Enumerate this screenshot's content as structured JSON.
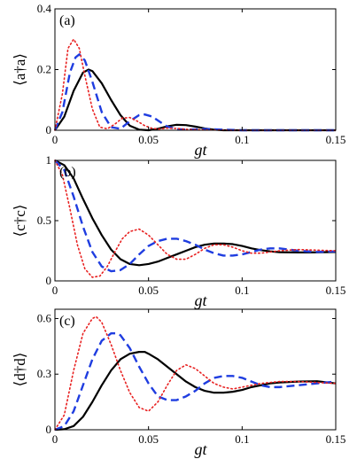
{
  "chart_data": [
    {
      "type": "line",
      "panel_label": "(a)",
      "ylabel": "⟨a†a⟩",
      "xlabel": "gt",
      "xlim": [
        0,
        0.15
      ],
      "ylim": [
        0,
        0.4
      ],
      "xticks": [
        "0",
        "0.05",
        "0.1",
        "0.15"
      ],
      "yticks": [
        "0",
        "0.2",
        "0.4"
      ],
      "xtick_values": [
        0,
        0.05,
        0.1,
        0.15
      ],
      "ytick_values": [
        0,
        0.2,
        0.4
      ],
      "series": [
        {
          "style": "solid",
          "color": "#000000",
          "x": [
            0,
            0.005,
            0.01,
            0.015,
            0.018,
            0.02,
            0.025,
            0.03,
            0.035,
            0.04,
            0.045,
            0.05,
            0.055,
            0.06,
            0.065,
            0.07,
            0.075,
            0.08,
            0.085,
            0.09,
            0.1,
            0.12,
            0.15
          ],
          "y": [
            0,
            0.045,
            0.13,
            0.19,
            0.2,
            0.195,
            0.155,
            0.1,
            0.05,
            0.015,
            0.002,
            0.0,
            0.005,
            0.013,
            0.018,
            0.017,
            0.012,
            0.006,
            0.002,
            0.0,
            0.0,
            0.0,
            0.0
          ]
        },
        {
          "style": "dashed",
          "color": "#1f3de0",
          "x": [
            0,
            0.004,
            0.008,
            0.011,
            0.013,
            0.016,
            0.02,
            0.025,
            0.03,
            0.035,
            0.04,
            0.045,
            0.048,
            0.052,
            0.056,
            0.06,
            0.065,
            0.07,
            0.08,
            0.09,
            0.1,
            0.12,
            0.15
          ],
          "y": [
            0,
            0.06,
            0.19,
            0.24,
            0.25,
            0.23,
            0.16,
            0.06,
            0.01,
            0.005,
            0.03,
            0.05,
            0.052,
            0.045,
            0.028,
            0.012,
            0.004,
            0.002,
            0.004,
            0.002,
            0.0,
            0.0,
            0.0
          ]
        },
        {
          "style": "dotted",
          "color": "#e82020",
          "x": [
            0,
            0.004,
            0.007,
            0.01,
            0.013,
            0.016,
            0.02,
            0.024,
            0.028,
            0.032,
            0.036,
            0.04,
            0.044,
            0.048,
            0.052,
            0.056,
            0.06,
            0.065,
            0.07,
            0.08,
            0.1,
            0.15
          ],
          "y": [
            0,
            0.12,
            0.27,
            0.3,
            0.27,
            0.18,
            0.07,
            0.01,
            0.005,
            0.02,
            0.04,
            0.042,
            0.03,
            0.015,
            0.006,
            0.004,
            0.007,
            0.006,
            0.003,
            0.001,
            0.0,
            0.0
          ]
        }
      ]
    },
    {
      "type": "line",
      "panel_label": "(b)",
      "ylabel": "⟨c†c⟩",
      "xlabel": "gt",
      "xlim": [
        0,
        0.15
      ],
      "ylim": [
        0,
        1
      ],
      "xticks": [
        "0",
        "0.05",
        "0.1",
        "0.15"
      ],
      "yticks": [
        "0",
        "0.5",
        "1"
      ],
      "xtick_values": [
        0,
        0.05,
        0.1,
        0.15
      ],
      "ytick_values": [
        0,
        0.5,
        1
      ],
      "series": [
        {
          "style": "solid",
          "color": "#000000",
          "x": [
            0,
            0.005,
            0.01,
            0.015,
            0.02,
            0.025,
            0.03,
            0.035,
            0.04,
            0.045,
            0.05,
            0.055,
            0.06,
            0.065,
            0.07,
            0.075,
            0.08,
            0.085,
            0.09,
            0.095,
            0.1,
            0.105,
            0.11,
            0.115,
            0.12,
            0.13,
            0.14,
            0.15
          ],
          "y": [
            1,
            0.96,
            0.85,
            0.68,
            0.52,
            0.38,
            0.26,
            0.18,
            0.14,
            0.13,
            0.14,
            0.16,
            0.19,
            0.22,
            0.25,
            0.28,
            0.3,
            0.31,
            0.31,
            0.305,
            0.29,
            0.27,
            0.255,
            0.245,
            0.238,
            0.236,
            0.237,
            0.24
          ]
        },
        {
          "style": "dashed",
          "color": "#1f3de0",
          "x": [
            0,
            0.005,
            0.01,
            0.015,
            0.02,
            0.025,
            0.03,
            0.035,
            0.04,
            0.045,
            0.05,
            0.055,
            0.06,
            0.065,
            0.07,
            0.075,
            0.08,
            0.085,
            0.09,
            0.095,
            0.1,
            0.105,
            0.11,
            0.115,
            0.12,
            0.13,
            0.14,
            0.15
          ],
          "y": [
            1,
            0.92,
            0.7,
            0.45,
            0.24,
            0.12,
            0.08,
            0.09,
            0.14,
            0.22,
            0.29,
            0.33,
            0.35,
            0.35,
            0.33,
            0.3,
            0.26,
            0.23,
            0.21,
            0.21,
            0.22,
            0.24,
            0.26,
            0.27,
            0.27,
            0.25,
            0.24,
            0.245
          ]
        },
        {
          "style": "dotted",
          "color": "#e82020",
          "x": [
            0,
            0.004,
            0.008,
            0.012,
            0.016,
            0.02,
            0.024,
            0.028,
            0.032,
            0.036,
            0.04,
            0.045,
            0.05,
            0.055,
            0.06,
            0.065,
            0.07,
            0.075,
            0.08,
            0.085,
            0.09,
            0.095,
            0.1,
            0.105,
            0.11,
            0.12,
            0.13,
            0.15
          ],
          "y": [
            1,
            0.88,
            0.6,
            0.3,
            0.1,
            0.03,
            0.04,
            0.12,
            0.24,
            0.35,
            0.41,
            0.43,
            0.38,
            0.3,
            0.22,
            0.18,
            0.18,
            0.22,
            0.27,
            0.3,
            0.3,
            0.28,
            0.25,
            0.23,
            0.23,
            0.25,
            0.26,
            0.25
          ]
        }
      ]
    },
    {
      "type": "line",
      "panel_label": "(c)",
      "ylabel": "⟨d†d⟩",
      "xlabel": "gt",
      "xlim": [
        0,
        0.15
      ],
      "ylim": [
        0,
        0.65
      ],
      "xticks": [
        "0",
        "0.05",
        "0.1",
        "0.15"
      ],
      "yticks": [
        "0",
        "0.3",
        "0.6"
      ],
      "xtick_values": [
        0,
        0.05,
        0.1,
        0.15
      ],
      "ytick_values": [
        0,
        0.3,
        0.6
      ],
      "series": [
        {
          "style": "solid",
          "color": "#000000",
          "x": [
            0,
            0.005,
            0.01,
            0.015,
            0.02,
            0.025,
            0.03,
            0.035,
            0.04,
            0.045,
            0.048,
            0.05,
            0.055,
            0.06,
            0.065,
            0.07,
            0.075,
            0.08,
            0.085,
            0.09,
            0.095,
            0.1,
            0.105,
            0.11,
            0.115,
            0.12,
            0.13,
            0.14,
            0.15
          ],
          "y": [
            0,
            0.003,
            0.02,
            0.07,
            0.15,
            0.24,
            0.32,
            0.38,
            0.41,
            0.42,
            0.42,
            0.41,
            0.38,
            0.34,
            0.3,
            0.26,
            0.23,
            0.21,
            0.2,
            0.2,
            0.205,
            0.215,
            0.23,
            0.24,
            0.25,
            0.255,
            0.26,
            0.262,
            0.25
          ]
        },
        {
          "style": "dashed",
          "color": "#1f3de0",
          "x": [
            0,
            0.005,
            0.01,
            0.015,
            0.02,
            0.025,
            0.03,
            0.033,
            0.035,
            0.04,
            0.045,
            0.05,
            0.055,
            0.06,
            0.065,
            0.07,
            0.075,
            0.08,
            0.085,
            0.09,
            0.095,
            0.1,
            0.105,
            0.11,
            0.115,
            0.12,
            0.13,
            0.14,
            0.15
          ],
          "y": [
            0,
            0.02,
            0.1,
            0.24,
            0.38,
            0.48,
            0.52,
            0.52,
            0.51,
            0.44,
            0.34,
            0.25,
            0.18,
            0.16,
            0.16,
            0.18,
            0.21,
            0.25,
            0.28,
            0.29,
            0.29,
            0.28,
            0.26,
            0.24,
            0.23,
            0.23,
            0.24,
            0.25,
            0.26
          ]
        },
        {
          "style": "dotted",
          "color": "#e82020",
          "x": [
            0,
            0.005,
            0.01,
            0.015,
            0.02,
            0.022,
            0.025,
            0.03,
            0.035,
            0.04,
            0.045,
            0.05,
            0.055,
            0.06,
            0.065,
            0.07,
            0.075,
            0.08,
            0.085,
            0.09,
            0.095,
            0.1,
            0.11,
            0.12,
            0.13,
            0.15
          ],
          "y": [
            0,
            0.08,
            0.32,
            0.52,
            0.6,
            0.61,
            0.58,
            0.46,
            0.32,
            0.2,
            0.12,
            0.1,
            0.15,
            0.24,
            0.32,
            0.35,
            0.33,
            0.29,
            0.25,
            0.23,
            0.22,
            0.23,
            0.25,
            0.26,
            0.26,
            0.25
          ]
        }
      ]
    }
  ]
}
